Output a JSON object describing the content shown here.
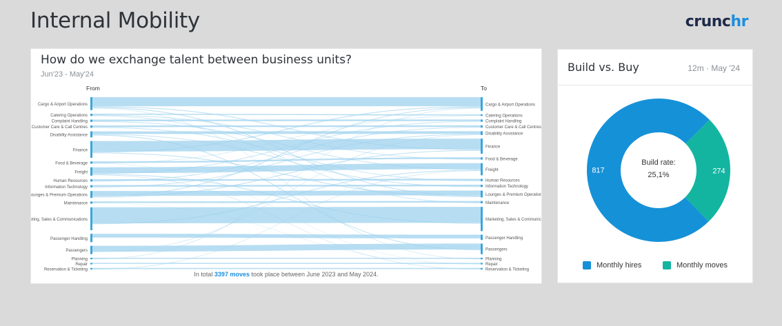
{
  "header": {
    "title": "Internal Mobility",
    "logo_part1": "crunc",
    "logo_part2": "hr"
  },
  "sankey_card": {
    "title": "How do we exchange talent between business units?",
    "period": "Jun'23 - May'24",
    "from_label": "From",
    "to_label": "To",
    "footer_prefix": "In total ",
    "footer_highlight": "3397 moves",
    "footer_suffix": " took place between June 2023 and May 2024.",
    "flow_color": "#9fd2ee",
    "node_color": "#3aa6dc",
    "units": [
      {
        "label": "Cargo & Airport Operations"
      },
      {
        "label": "Catering Operations"
      },
      {
        "label": "Complaint Handling"
      },
      {
        "label": "Customer Care & Call Centres"
      },
      {
        "label": "Disability Assistance"
      },
      {
        "label": "Finance"
      },
      {
        "label": "Food & Beverage"
      },
      {
        "label": "Freight"
      },
      {
        "label": "Human Resources"
      },
      {
        "label": "Information Technology"
      },
      {
        "label": "Lounges & Premium Operations"
      },
      {
        "label": "Maintenance"
      },
      {
        "label": "Marketing, Sales & Communications"
      },
      {
        "label": "Passenger Handling"
      },
      {
        "label": "Passengers"
      },
      {
        "label": "Planning"
      },
      {
        "label": "Repair"
      },
      {
        "label": "Reservation & Ticketing"
      }
    ]
  },
  "build_buy_card": {
    "title": "Build vs. Buy",
    "period": "12m · May '24",
    "center_label": "Build rate:",
    "center_value": "25,1%",
    "legend": [
      {
        "label": "Monthly hires",
        "color": "#1591d8"
      },
      {
        "label": "Monthly moves",
        "color": "#13b5a0"
      }
    ]
  },
  "chart_data": [
    {
      "type": "pie",
      "title": "Build vs. Buy",
      "categories": [
        "Monthly hires",
        "Monthly moves"
      ],
      "values": [
        817,
        274
      ],
      "colors": [
        "#1591d8",
        "#13b5a0"
      ],
      "legend_position": "bottom"
    }
  ]
}
